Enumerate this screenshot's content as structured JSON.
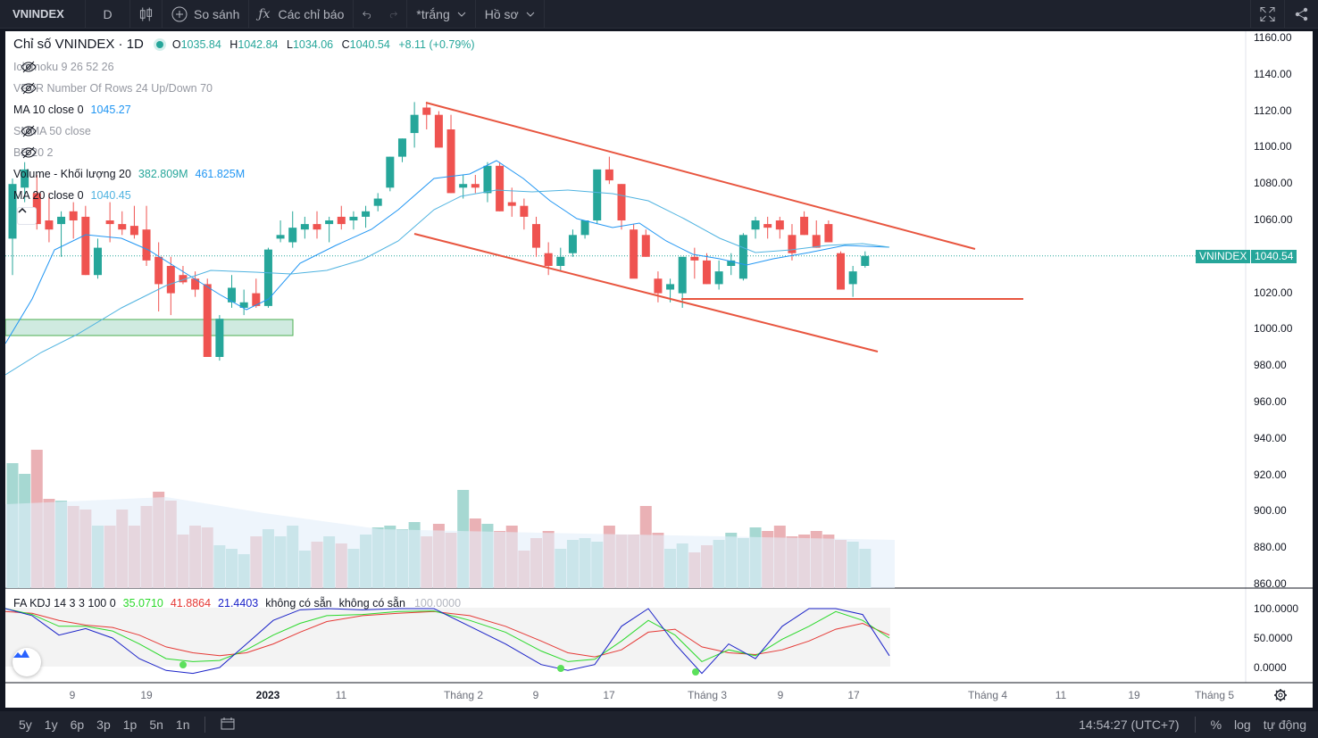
{
  "toolbar": {
    "symbol": "VNINDEX",
    "interval": "D",
    "compare_label": "So sánh",
    "indicators_label": "Các chỉ báo",
    "layout_label": "*trắng",
    "profile_label": "Hồ sơ"
  },
  "legend": {
    "title": "Chỉ số VNINDEX · 1D",
    "open_label": "O",
    "open": "1035.84",
    "high_label": "H",
    "high": "1042.84",
    "low_label": "L",
    "low": "1034.06",
    "close_label": "C",
    "close": "1040.54",
    "change": "+8.11 (+0.79%)",
    "indicators": [
      {
        "name": "Ichimoku 9 26 52 26",
        "value": "",
        "hidden": true
      },
      {
        "name": "VPVR Number Of Rows 24 Up/Down 70",
        "value": "",
        "hidden": true
      },
      {
        "name": "MA 10 close 0",
        "value": "1045.27",
        "hidden": false
      },
      {
        "name": "SMMA 50 close",
        "value": "",
        "hidden": true
      },
      {
        "name": "BB 20 2",
        "value": "",
        "hidden": true
      },
      {
        "name": "Volume - Khối lượng 20",
        "value": "382.809M",
        "value2": "461.825M",
        "hidden": false
      },
      {
        "name": "MA 20 close 0",
        "value": "1040.45",
        "hidden": false
      }
    ]
  },
  "price_scale": [
    "1160.00",
    "1140.00",
    "1120.00",
    "1100.00",
    "1080.00",
    "1060.00",
    "1040.00",
    "1020.00",
    "1000.00",
    "980.00",
    "960.00",
    "940.00",
    "920.00",
    "900.00",
    "880.00",
    "860.00"
  ],
  "last_price": {
    "symbol": "VNINDEX",
    "price": "1040.54"
  },
  "kdj": {
    "name": "FA KDJ 14 3 3 100 0",
    "k": "35.0710",
    "d": "41.8864",
    "j": "21.4403",
    "na1": "không có sẵn",
    "na2": "không có sẵn",
    "level": "100.0000",
    "scale": [
      "100.0000",
      "50.0000",
      "0.0000"
    ]
  },
  "time_axis": [
    "9",
    "19",
    "2023",
    "11",
    "Tháng 2",
    "9",
    "17",
    "Tháng 3",
    "9",
    "17",
    "Tháng 4",
    "11",
    "19",
    "Tháng 5"
  ],
  "bottom": {
    "ranges": [
      "5y",
      "1y",
      "6p",
      "3p",
      "1p",
      "5n",
      "1n"
    ],
    "clock": "14:54:27 (UTC+7)",
    "percent": "%",
    "log": "log",
    "auto": "tự động"
  },
  "colors": {
    "up": "#26a69a",
    "down": "#ef5350",
    "trendline": "#e8553f",
    "ma10": "#2196f3",
    "ma20": "#4fb3e0",
    "kdj_k": "#2bd92b",
    "kdj_d": "#e53935",
    "kdj_j": "#1a22c8"
  },
  "chart_data": {
    "type": "candlestick",
    "y_range": [
      860,
      1165
    ],
    "candles": [
      [
        1050,
        1083,
        1030,
        1080
      ],
      [
        1078,
        1092,
        1070,
        1088
      ],
      [
        1075,
        1085,
        1055,
        1058
      ],
      [
        1060,
        1075,
        1048,
        1055
      ],
      [
        1058,
        1065,
        1040,
        1062
      ],
      [
        1065,
        1070,
        1050,
        1060
      ],
      [
        1062,
        1068,
        1030,
        1030
      ],
      [
        1030,
        1050,
        1028,
        1045
      ],
      [
        1060,
        1070,
        1048,
        1058
      ],
      [
        1058,
        1065,
        1052,
        1055
      ],
      [
        1057,
        1068,
        1050,
        1052
      ],
      [
        1055,
        1068,
        1035,
        1038
      ],
      [
        1040,
        1048,
        1010,
        1025
      ],
      [
        1035,
        1040,
        1008,
        1020
      ],
      [
        1030,
        1035,
        1025,
        1026
      ],
      [
        1028,
        1032,
        1018,
        1022
      ],
      [
        1025,
        1028,
        985,
        985
      ],
      [
        985,
        1008,
        983,
        1006
      ],
      [
        1015,
        1030,
        1012,
        1023
      ],
      [
        1012,
        1022,
        1008,
        1015
      ],
      [
        1020,
        1028,
        1012,
        1013
      ],
      [
        1013,
        1045,
        1012,
        1044
      ],
      [
        1050,
        1060,
        1048,
        1052
      ],
      [
        1048,
        1065,
        1045,
        1056
      ],
      [
        1055,
        1062,
        1050,
        1058
      ],
      [
        1058,
        1065,
        1050,
        1055
      ],
      [
        1058,
        1062,
        1048,
        1060
      ],
      [
        1062,
        1068,
        1055,
        1058
      ],
      [
        1060,
        1065,
        1055,
        1062
      ],
      [
        1062,
        1068,
        1056,
        1065
      ],
      [
        1068,
        1075,
        1065,
        1072
      ],
      [
        1078,
        1095,
        1076,
        1095
      ],
      [
        1095,
        1105,
        1092,
        1105
      ],
      [
        1108,
        1125,
        1100,
        1118
      ],
      [
        1122,
        1125,
        1110,
        1118
      ],
      [
        1118,
        1120,
        1100,
        1100
      ],
      [
        1110,
        1118,
        1075,
        1075
      ],
      [
        1078,
        1085,
        1072,
        1080
      ],
      [
        1080,
        1085,
        1075,
        1078
      ],
      [
        1075,
        1092,
        1070,
        1090
      ],
      [
        1090,
        1092,
        1065,
        1065
      ],
      [
        1070,
        1078,
        1062,
        1068
      ],
      [
        1068,
        1072,
        1055,
        1062
      ],
      [
        1058,
        1062,
        1040,
        1045
      ],
      [
        1042,
        1048,
        1030,
        1035
      ],
      [
        1035,
        1045,
        1032,
        1040
      ],
      [
        1042,
        1055,
        1040,
        1052
      ],
      [
        1052,
        1060,
        1050,
        1060
      ],
      [
        1060,
        1085,
        1058,
        1088
      ],
      [
        1088,
        1095,
        1080,
        1082
      ],
      [
        1080,
        1080,
        1055,
        1060
      ],
      [
        1055,
        1058,
        1030,
        1028
      ],
      [
        1052,
        1055,
        1040,
        1040
      ],
      [
        1028,
        1032,
        1015,
        1020
      ],
      [
        1022,
        1028,
        1015,
        1025
      ],
      [
        1020,
        1040,
        1012,
        1040
      ],
      [
        1040,
        1045,
        1028,
        1038
      ],
      [
        1038,
        1042,
        1025,
        1025
      ],
      [
        1025,
        1038,
        1022,
        1032
      ],
      [
        1035,
        1042,
        1030,
        1038
      ],
      [
        1028,
        1053,
        1027,
        1052
      ],
      [
        1055,
        1062,
        1050,
        1060
      ],
      [
        1058,
        1062,
        1050,
        1056
      ],
      [
        1060,
        1062,
        1050,
        1055
      ],
      [
        1052,
        1058,
        1038,
        1042
      ],
      [
        1062,
        1065,
        1052,
        1052
      ],
      [
        1052,
        1060,
        1045,
        1045
      ],
      [
        1058,
        1060,
        1048,
        1048
      ],
      [
        1042,
        1043,
        1022,
        1022
      ],
      [
        1025,
        1035,
        1018,
        1032
      ],
      [
        1035,
        1043,
        1034,
        1040.5
      ]
    ],
    "volume_ylim_px_note": "volume drawn in lower pane",
    "trendlines": "descending channel with horizontal support near 1017"
  }
}
